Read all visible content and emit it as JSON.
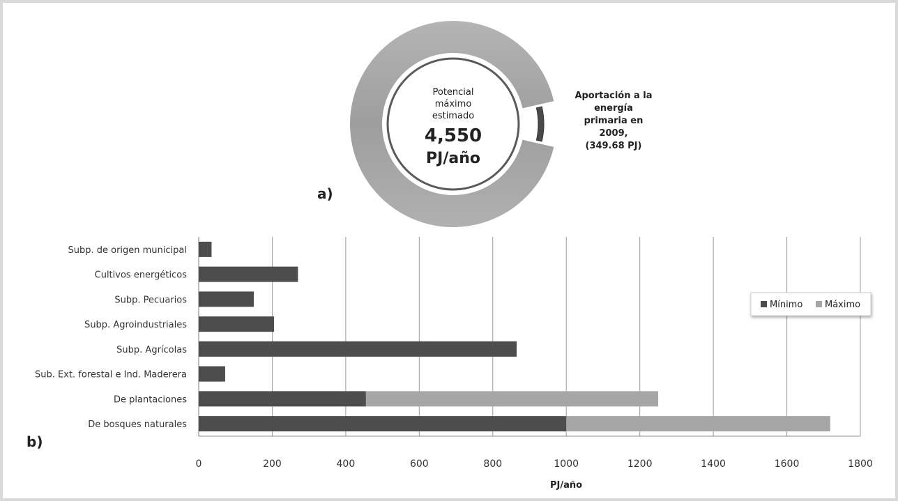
{
  "chart_data": [
    {
      "id": "a",
      "type": "pie",
      "panel_label": "a)",
      "center_text": {
        "line1": "Potencial",
        "line2": "máximo",
        "line3": "estimado",
        "value": "4,550",
        "unit": "PJ/año"
      },
      "slices": [
        {
          "name": "Potencial máximo estimado",
          "value": 4550,
          "color": "#a9a9a9"
        },
        {
          "name": "Aportación a la energía primaria en 2009",
          "value": 349.68,
          "color": "#4a4a4a"
        }
      ],
      "callout": {
        "line1": "Aportación a la",
        "line2": "energía",
        "line3": "primaria en",
        "line4": "2009,",
        "line5": "(349.68 PJ)"
      }
    },
    {
      "id": "b",
      "type": "bar",
      "orientation": "horizontal",
      "stacked": true,
      "panel_label": "b)",
      "categories": [
        "Subp. de origen municipal",
        "Cultivos energéticos",
        "Subp. Pecuarios",
        "Subp. Agroindustriales",
        "Subp. Agrícolas",
        "Sub. Ext. forestal e Ind. Maderera",
        "De plantaciones",
        "De bosques naturales"
      ],
      "series": [
        {
          "name": "Mínimo",
          "color": "#4d4d4d",
          "values": [
            35,
            270,
            150,
            205,
            865,
            72,
            455,
            1000
          ]
        },
        {
          "name": "Máximo",
          "color": "#a6a6a6",
          "values": [
            0,
            0,
            0,
            0,
            0,
            0,
            795,
            718
          ]
        }
      ],
      "xlabel": "PJ/año",
      "xlim": [
        0,
        1800
      ],
      "xticks": [
        "0",
        "200",
        "400",
        "600",
        "800",
        "1000",
        "1200",
        "1400",
        "1600",
        "1800"
      ],
      "grid": true,
      "legend_position": "right"
    }
  ]
}
